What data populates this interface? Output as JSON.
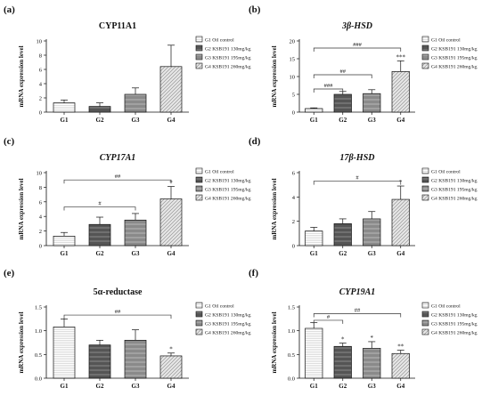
{
  "colors": {
    "g1": "#ffffff",
    "g2": "#555555",
    "g3": "#8a8a8a",
    "g4": "#e6e6e6",
    "ink": "#111111",
    "bracket": "#333333"
  },
  "legend": [
    "G1 Oil control",
    "G2 KSB191 130mg/kg",
    "G3 KSB191 195mg/kg",
    "G4 KSB191 260mg/kg"
  ],
  "chart_data": [
    {
      "type": "bar",
      "panel": "(a)",
      "title": "CYP11A1",
      "title_italic": false,
      "ylabel": "mRNA expression level",
      "categories": [
        "G1",
        "G2",
        "G3",
        "G4"
      ],
      "values": [
        1.3,
        0.8,
        2.5,
        6.4
      ],
      "errors": [
        0.4,
        0.5,
        0.9,
        3.0
      ],
      "yticks": [
        "0",
        "2",
        "4",
        "6",
        "8",
        "10"
      ],
      "ylim": [
        0,
        10
      ],
      "stars": [
        "",
        "",
        "",
        ""
      ],
      "brackets": []
    },
    {
      "type": "bar",
      "panel": "(b)",
      "title": "3β-HSD",
      "title_italic": true,
      "ylabel": "mRNA expression level",
      "categories": [
        "G1",
        "G2",
        "G3",
        "G4"
      ],
      "values": [
        1.0,
        5.0,
        5.2,
        11.4
      ],
      "errors": [
        0.2,
        0.8,
        1.1,
        3.0
      ],
      "yticks": [
        "0",
        "5",
        "10",
        "15",
        "20"
      ],
      "ylim": [
        0,
        20
      ],
      "stars": [
        "",
        "",
        "",
        "***"
      ],
      "brackets": [
        {
          "from": 0,
          "to": 1,
          "level": 6.5,
          "label": "###"
        },
        {
          "from": 0,
          "to": 2,
          "level": 10.5,
          "label": "##"
        },
        {
          "from": 0,
          "to": 3,
          "level": 18.0,
          "label": "###"
        }
      ]
    },
    {
      "type": "bar",
      "panel": "(c)",
      "title": "CYP17A1",
      "title_italic": true,
      "ylabel": "mRNA expression level",
      "categories": [
        "G1",
        "G2",
        "G3",
        "G4"
      ],
      "values": [
        1.3,
        2.9,
        3.5,
        6.4
      ],
      "errors": [
        0.5,
        1.0,
        0.9,
        1.7
      ],
      "yticks": [
        "0",
        "2",
        "4",
        "6",
        "8",
        "10"
      ],
      "ylim": [
        0,
        10
      ],
      "stars": [
        "",
        "",
        "",
        "*"
      ],
      "brackets": [
        {
          "from": 0,
          "to": 2,
          "level": 5.3,
          "label": "#"
        },
        {
          "from": 0,
          "to": 3,
          "level": 9.0,
          "label": "##"
        }
      ]
    },
    {
      "type": "bar",
      "panel": "(d)",
      "title": "17β-HSD",
      "title_italic": true,
      "ylabel": "mRNA expression level",
      "categories": [
        "G1",
        "G2",
        "G3",
        "G4"
      ],
      "values": [
        1.2,
        1.8,
        2.2,
        3.8
      ],
      "errors": [
        0.3,
        0.4,
        0.6,
        1.1
      ],
      "yticks": [
        "0",
        "2",
        "4",
        "6"
      ],
      "ylim": [
        0,
        6
      ],
      "stars": [
        "",
        "",
        "",
        "*"
      ],
      "brackets": [
        {
          "from": 0,
          "to": 3,
          "level": 5.3,
          "label": "#"
        }
      ]
    },
    {
      "type": "bar",
      "panel": "(e)",
      "title": "5α-reductase",
      "title_italic": false,
      "ylabel": "mRNA expression level",
      "categories": [
        "G1",
        "G2",
        "G3",
        "G4"
      ],
      "values": [
        1.08,
        0.7,
        0.8,
        0.47
      ],
      "errors": [
        0.17,
        0.1,
        0.22,
        0.06
      ],
      "yticks": [
        "0.0",
        "0.5",
        "1.0",
        "1.5"
      ],
      "ylim": [
        0,
        1.5
      ],
      "stars": [
        "",
        "",
        "",
        "*"
      ],
      "brackets": [
        {
          "from": 0,
          "to": 3,
          "level": 1.33,
          "label": "##"
        }
      ]
    },
    {
      "type": "bar",
      "panel": "(f)",
      "title": "CYP19A1",
      "title_italic": true,
      "ylabel": "mRNA expression level",
      "categories": [
        "G1",
        "G2",
        "G3",
        "G4"
      ],
      "values": [
        1.05,
        0.67,
        0.63,
        0.52
      ],
      "errors": [
        0.12,
        0.07,
        0.14,
        0.07
      ],
      "yticks": [
        "0.0",
        "0.5",
        "1.0",
        "1.5"
      ],
      "ylim": [
        0,
        1.5
      ],
      "stars": [
        "",
        "*",
        "*",
        "**"
      ],
      "brackets": [
        {
          "from": 0,
          "to": 1,
          "level": 1.22,
          "label": "#"
        },
        {
          "from": 0,
          "to": 3,
          "level": 1.36,
          "label": "##"
        }
      ]
    }
  ]
}
